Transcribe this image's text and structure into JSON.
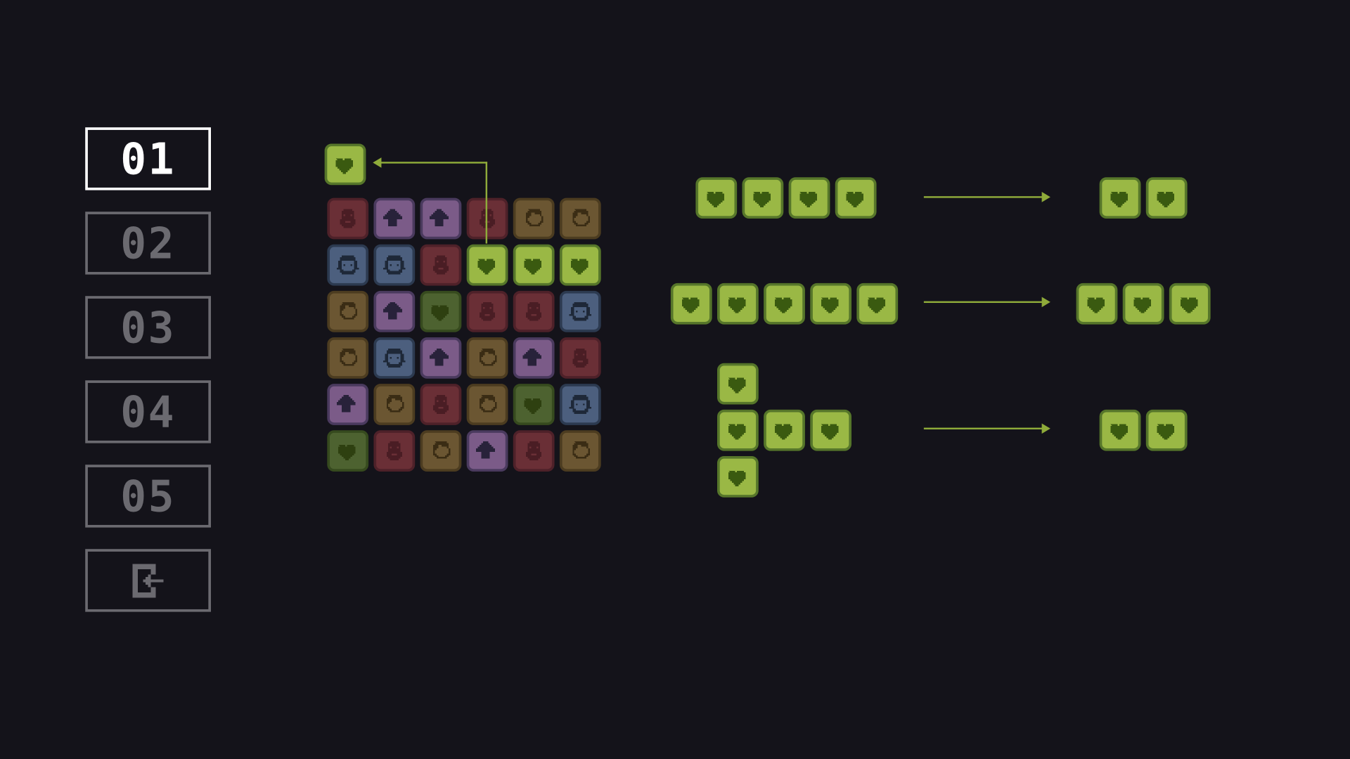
{
  "menu": {
    "levels": [
      {
        "label": "01",
        "selected": true
      },
      {
        "label": "02",
        "selected": false
      },
      {
        "label": "03",
        "selected": false
      },
      {
        "label": "04",
        "selected": false
      },
      {
        "label": "05",
        "selected": false
      }
    ],
    "exit_icon": "exit-door-arrow-icon"
  },
  "colors": {
    "background": "#14131a",
    "selected": "#ffffff",
    "unselected": "#6b6a70",
    "accent": "#8fab3a"
  },
  "tile_types": {
    "red": {
      "icon": "bearded-face",
      "fill": "#6a2f36",
      "border": "#4e2129",
      "glyph": "#4a1d24"
    },
    "purple": {
      "icon": "arrow-up",
      "fill": "#7b5b88",
      "border": "#4a3a5e",
      "glyph": "#28223a"
    },
    "blue": {
      "icon": "curly-hair-face",
      "fill": "#4c5f7e",
      "border": "#2c3a50",
      "glyph": "#1e2838"
    },
    "brown": {
      "icon": "side-hair-face",
      "fill": "#6b5632",
      "border": "#4c3c20",
      "glyph": "#3a2c14"
    },
    "darkgreen": {
      "icon": "heart",
      "fill": "#4d6230",
      "border": "#364a1e",
      "glyph": "#2e4010"
    },
    "green": {
      "icon": "heart",
      "fill": "#9ab845",
      "border": "#56762a",
      "glyph": "#3a5a10"
    }
  },
  "selected_tile": "green",
  "board": [
    [
      "red",
      "purple",
      "purple",
      "red",
      "brown",
      "brown"
    ],
    [
      "blue",
      "blue",
      "red",
      "green",
      "green",
      "green"
    ],
    [
      "brown",
      "purple",
      "darkgreen",
      "red",
      "red",
      "blue"
    ],
    [
      "brown",
      "blue",
      "purple",
      "brown",
      "purple",
      "red"
    ],
    [
      "purple",
      "brown",
      "red",
      "brown",
      "darkgreen",
      "blue"
    ],
    [
      "darkgreen",
      "red",
      "brown",
      "purple",
      "red",
      "brown"
    ]
  ],
  "rules": [
    {
      "match": "line-of-4",
      "input_count": 4,
      "result_count": 2
    },
    {
      "match": "line-of-5",
      "input_count": 5,
      "result_count": 3
    },
    {
      "match": "cross-of-5",
      "input_count": 5,
      "result_count": 2
    }
  ]
}
